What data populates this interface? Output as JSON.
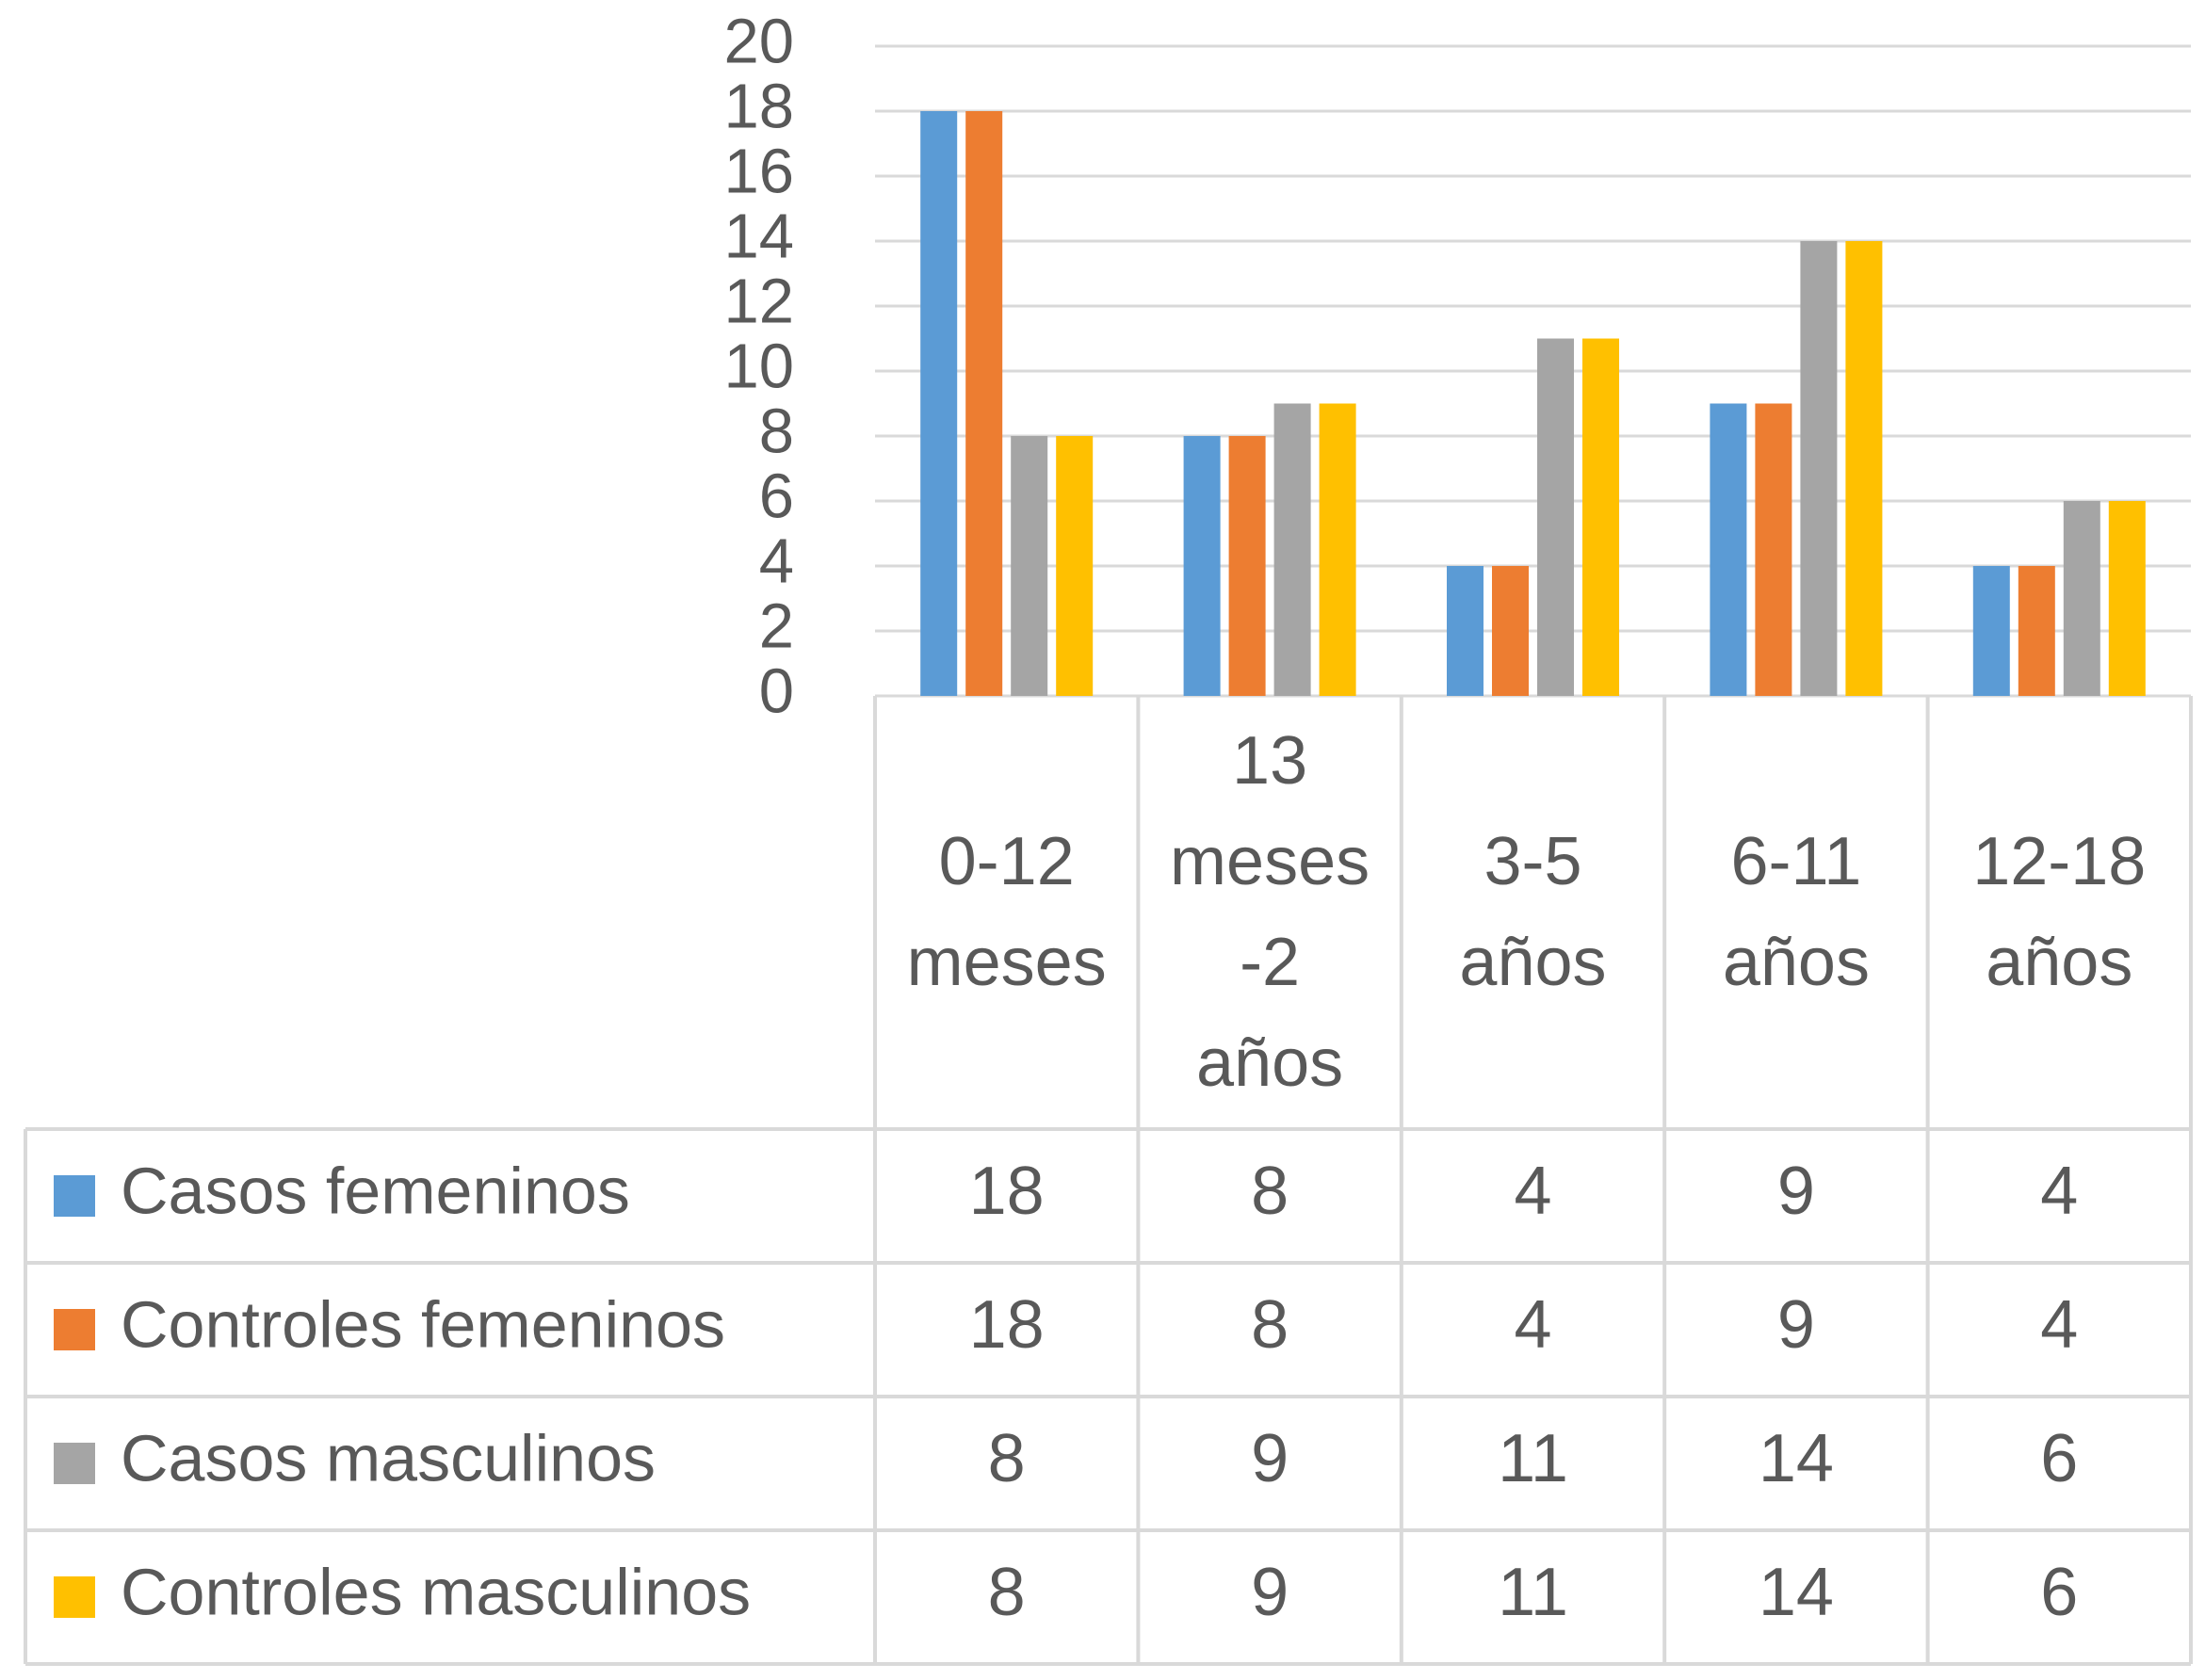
{
  "chart_data": {
    "type": "bar",
    "categories": [
      "0-12 meses",
      "13 meses -2 años",
      "3-5 años",
      "6-11 años",
      "12-18 años"
    ],
    "series": [
      {
        "name": "Casos femeninos",
        "color": "#5b9bd5",
        "values": [
          18,
          8,
          4,
          9,
          4
        ]
      },
      {
        "name": "Controles femeninos",
        "color": "#ed7d31",
        "values": [
          18,
          8,
          4,
          9,
          4
        ]
      },
      {
        "name": "Casos masculinos",
        "color": "#a5a5a5",
        "values": [
          8,
          9,
          11,
          14,
          6
        ]
      },
      {
        "name": "Controles masculinos",
        "color": "#ffc000",
        "values": [
          8,
          9,
          11,
          14,
          6
        ]
      }
    ],
    "ylim": [
      0,
      20
    ],
    "yticks": [
      0,
      2,
      4,
      6,
      8,
      10,
      12,
      14,
      16,
      18,
      20
    ],
    "grid": true,
    "data_table": true
  }
}
